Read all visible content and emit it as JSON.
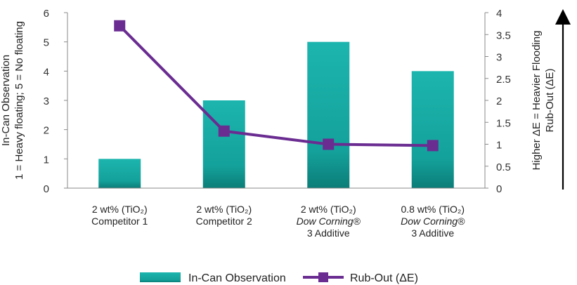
{
  "chart_data": {
    "type": "bar",
    "title": "",
    "categories": [
      [
        "2 wt% (TiO₂)",
        "Competitor 1"
      ],
      [
        "2 wt% (TiO₂)",
        "Competitor 2"
      ],
      [
        "2 wt% (TiO₂)",
        "Dow Corning®",
        "3 Additive"
      ],
      [
        "0.8 wt% (TiO₂)",
        "Dow Corning®",
        "3 Additive"
      ]
    ],
    "italic_lines": [
      [],
      [],
      [
        1
      ],
      [
        1
      ]
    ],
    "series": [
      {
        "name": "In-Can Observation",
        "type": "bar",
        "axis": "left",
        "values": [
          1,
          3,
          5,
          4
        ],
        "color": "#1aaca6"
      },
      {
        "name": "Rub-Out (ΔE)",
        "type": "line",
        "axis": "right",
        "values": [
          3.7,
          1.3,
          1.0,
          0.97
        ],
        "color": "#6a2c91"
      }
    ],
    "y_left": {
      "label_lines": [
        "In-Can Observation",
        "1 = Heavy floating; 5 = No floating"
      ],
      "ylim": [
        0,
        6
      ],
      "ticks": [
        "0",
        "1",
        "2",
        "3",
        "4",
        "5",
        "6"
      ]
    },
    "y_right": {
      "label_lines": [
        "Higher ΔE = Heavier Flooding",
        "Rub-Out (ΔE)"
      ],
      "ylim": [
        0,
        4
      ],
      "ticks": [
        "0",
        "0.5",
        "1",
        "1.5",
        "2",
        "2.5",
        "3",
        "3.5",
        "4"
      ]
    },
    "legend": {
      "position": "bottom"
    },
    "grid": false
  }
}
